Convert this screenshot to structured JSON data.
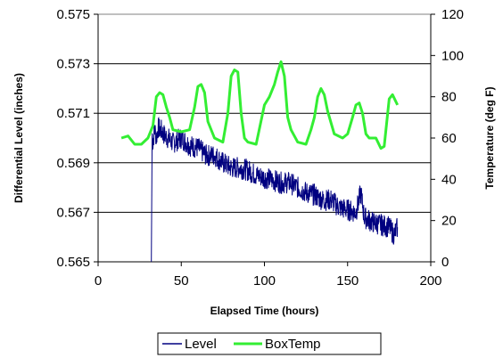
{
  "chart_data": {
    "type": "line",
    "title": "",
    "xlabel": "Elapsed Time (hours)",
    "ylabel_left": "Differential Level (inches)",
    "ylabel_right": "Temperature (deg F)",
    "xlim": [
      0,
      200
    ],
    "ylim_left": [
      0.565,
      0.575
    ],
    "ylim_right": [
      0,
      120
    ],
    "x_ticks": [
      "0",
      "50",
      "100",
      "150",
      "200"
    ],
    "y_left_ticks": [
      "0.565",
      "0.567",
      "0.569",
      "0.571",
      "0.573",
      "0.575"
    ],
    "y_right_ticks": [
      "0",
      "20",
      "40",
      "60",
      "80",
      "100",
      "120"
    ],
    "grid": "horizontal",
    "legend_position": "bottom",
    "series": [
      {
        "name": "Level",
        "axis": "left",
        "color": "#000080",
        "x": [
          32,
          32.5,
          33,
          34,
          35,
          36,
          38,
          40,
          42,
          45,
          50,
          55,
          60,
          65,
          70,
          75,
          80,
          85,
          90,
          95,
          100,
          105,
          110,
          115,
          120,
          125,
          130,
          135,
          140,
          145,
          150,
          155,
          158,
          160,
          165,
          170,
          175,
          178,
          180
        ],
        "values": [
          0.565,
          0.5702,
          0.5698,
          0.5704,
          0.57,
          0.5704,
          0.5703,
          0.5701,
          0.57,
          0.5698,
          0.57,
          0.5697,
          0.5696,
          0.5693,
          0.5693,
          0.569,
          0.5688,
          0.5688,
          0.5687,
          0.5685,
          0.5684,
          0.5683,
          0.5682,
          0.5682,
          0.568,
          0.5678,
          0.5677,
          0.5675,
          0.5675,
          0.5672,
          0.5671,
          0.567,
          0.5678,
          0.5668,
          0.5666,
          0.5665,
          0.5664,
          0.5661,
          0.5664
        ]
      },
      {
        "name": "BoxTemp",
        "axis": "right",
        "color": "#33ee33",
        "x": [
          14,
          18,
          22,
          26,
          30,
          33,
          35,
          37,
          39,
          41,
          43,
          45,
          50,
          55,
          58,
          60,
          62,
          64,
          66,
          70,
          75,
          78,
          80,
          82,
          84,
          86,
          88,
          90,
          95,
          100,
          103,
          106,
          108,
          110,
          112,
          114,
          116,
          120,
          125,
          128,
          130,
          132,
          134,
          136,
          138,
          142,
          147,
          150,
          153,
          155,
          157,
          159,
          161,
          163,
          167,
          170,
          172,
          175,
          177,
          180
        ],
        "values": [
          60,
          61,
          57,
          57,
          60,
          66,
          80,
          82,
          81,
          75,
          70,
          64,
          63,
          64,
          75,
          85,
          86,
          82,
          68,
          60,
          58,
          72,
          90,
          93,
          92,
          72,
          60,
          58,
          57,
          76,
          80,
          86,
          92,
          97,
          90,
          70,
          64,
          58,
          57,
          64,
          70,
          80,
          84,
          81,
          73,
          62,
          60,
          62,
          70,
          76,
          77,
          72,
          62,
          60,
          60,
          55,
          56,
          79,
          81,
          76
        ]
      }
    ]
  }
}
